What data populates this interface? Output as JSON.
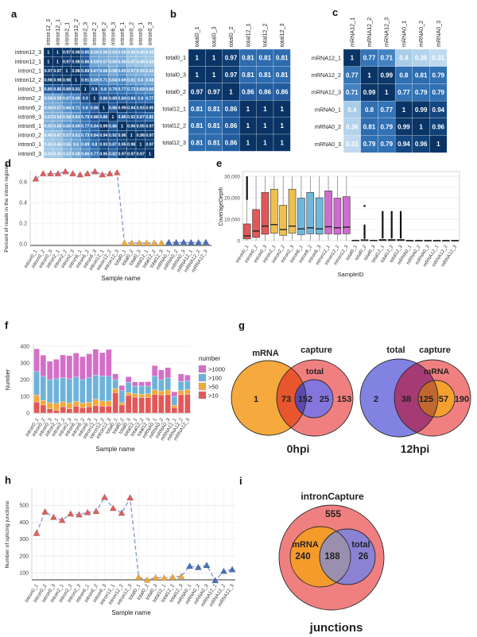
{
  "figure": {
    "background": "#ffffff"
  },
  "samples_all": [
    "intron0_1",
    "intron0_2",
    "intron0_3",
    "intron2_1",
    "intron2_2",
    "intron2_3",
    "intron6_1",
    "intron6_2",
    "intron6_3",
    "intron12_1",
    "intron12_2",
    "intron12_3",
    "total0_1",
    "total0_2",
    "total0_3",
    "total12_1",
    "total12_2",
    "total12_3",
    "mRNA0_1",
    "mRNA0_2",
    "mRNA0_3",
    "mRNA12_1",
    "mRNA12_2",
    "mRNA12_3"
  ],
  "colors": {
    "marker_groups": {
      "intron": "#D9605F",
      "total": "#EDA93D",
      "mRNA": "#4A6FB5"
    },
    "dash_line": "#8097D8",
    "box_groups": {
      "intron0": "#E15858",
      "intron2": "#EEC04F",
      "intron6": "#6FB8DC",
      "intron12": "#CF6CCF",
      "total0": "#999999",
      "total12": "#999999",
      "mRNA0": "#999999",
      "mRNA12": "#999999"
    },
    "bar_segments": {
      ">10": "#E15858",
      ">50": "#F2A93B",
      ">100": "#6DB3D9",
      ">1000": "#D46FC7"
    }
  },
  "chart_data": [
    {
      "panel": "a",
      "type": "heatmap",
      "samples": [
        "intron12_3",
        "intron12_1",
        "intron2_1",
        "intron12_2",
        "intron2_3",
        "intron2_2",
        "intron6_2",
        "intron6_3",
        "intron6_1",
        "intron0_2",
        "intron0_1",
        "intron0_3"
      ],
      "matrix": [
        [
          1,
          1,
          0.97,
          0.98,
          0.85,
          0.58,
          0.56,
          0.53,
          0.55,
          0.46,
          0.45,
          0.43
        ],
        [
          1,
          1,
          0.97,
          0.98,
          0.86,
          0.59,
          0.57,
          0.54,
          0.56,
          0.47,
          0.46,
          0.43
        ],
        [
          0.97,
          0.97,
          1,
          0.98,
          0.89,
          0.67,
          0.66,
          0.58,
          0.65,
          0.57,
          0.55,
          0.53
        ],
        [
          0.98,
          0.98,
          0.98,
          1,
          0.91,
          0.69,
          0.71,
          0.64,
          0.69,
          0.61,
          0.6,
          0.58
        ],
        [
          0.85,
          0.86,
          0.89,
          0.91,
          1,
          0.9,
          0.8,
          0.79,
          0.77,
          0.73,
          0.69,
          0.66
        ],
        [
          0.58,
          0.59,
          0.67,
          0.69,
          0.9,
          1,
          0.86,
          0.88,
          0.84,
          0.84,
          0.8,
          0.77
        ],
        [
          0.56,
          0.57,
          0.66,
          0.71,
          0.8,
          0.86,
          1,
          0.86,
          0.99,
          0.94,
          0.93,
          0.95
        ],
        [
          0.53,
          0.54,
          0.58,
          0.64,
          0.79,
          0.88,
          0.86,
          1,
          0.86,
          0.92,
          0.87,
          0.82
        ],
        [
          0.55,
          0.56,
          0.65,
          0.69,
          0.77,
          0.84,
          0.99,
          0.86,
          1,
          0.96,
          0.95,
          0.97
        ],
        [
          0.46,
          0.47,
          0.57,
          0.61,
          0.73,
          0.84,
          0.94,
          0.92,
          0.96,
          1,
          0.98,
          0.97
        ],
        [
          0.45,
          0.46,
          0.55,
          0.6,
          0.69,
          0.8,
          0.93,
          0.87,
          0.95,
          0.98,
          1,
          0.97
        ],
        [
          0.43,
          0.43,
          0.53,
          0.58,
          0.66,
          0.77,
          0.95,
          0.82,
          0.97,
          0.97,
          0.97,
          1
        ]
      ]
    },
    {
      "panel": "b",
      "type": "heatmap",
      "samples": [
        "total0_1",
        "total0_3",
        "total0_2",
        "total12_1",
        "total12_2",
        "total12_3"
      ],
      "matrix": [
        [
          1,
          1,
          0.97,
          0.81,
          0.81,
          0.81
        ],
        [
          1,
          1,
          0.97,
          0.81,
          0.81,
          0.81
        ],
        [
          0.97,
          0.97,
          1,
          0.86,
          0.86,
          0.86
        ],
        [
          0.81,
          0.81,
          0.86,
          1,
          1,
          1
        ],
        [
          0.81,
          0.81,
          0.86,
          1,
          1,
          1
        ],
        [
          0.81,
          0.81,
          0.86,
          1,
          1,
          1
        ]
      ]
    },
    {
      "panel": "c",
      "type": "heatmap",
      "samples": [
        "mRNA12_1",
        "mRNA12_2",
        "mRNA12_3",
        "mRNA0_1",
        "mRNA0_2",
        "mRNA0_3"
      ],
      "matrix": [
        [
          1,
          0.77,
          0.71,
          0.4,
          0.36,
          0.31
        ],
        [
          0.77,
          1,
          0.99,
          0.8,
          0.81,
          0.79
        ],
        [
          0.71,
          0.99,
          1,
          0.77,
          0.79,
          0.79
        ],
        [
          0.4,
          0.8,
          0.77,
          1,
          0.99,
          0.94
        ],
        [
          0.36,
          0.81,
          0.79,
          0.99,
          1,
          0.96
        ],
        [
          0.31,
          0.79,
          0.79,
          0.94,
          0.96,
          1
        ]
      ]
    },
    {
      "panel": "d",
      "type": "line",
      "ylabel": "Percent of reads in the intron regions",
      "xlabel": "Sample name",
      "yticks": [
        0.0,
        0.2,
        0.4,
        0.6
      ],
      "ytick_labels": [
        "0.0",
        "0.2",
        "0.4",
        "0.6"
      ],
      "values": [
        0.63,
        0.68,
        0.68,
        0.68,
        0.7,
        0.68,
        0.67,
        0.68,
        0.7,
        0.67,
        0.68,
        0.69,
        0.008,
        0.008,
        0.008,
        0.008,
        0.008,
        0.008,
        0.013,
        0.013,
        0.015,
        0.012,
        0.013,
        0.015
      ]
    },
    {
      "panel": "e",
      "type": "boxplot",
      "ylabel": "CoverageDepth",
      "xlabel": "SampleID",
      "yticks": [
        0,
        10000,
        20000,
        30000
      ],
      "ytick_labels": [
        "0",
        "10,000",
        "20,000",
        "30,000"
      ],
      "boxes": [
        {
          "name": "intron0_1",
          "q1": 800,
          "med": 2200,
          "q3": 7800,
          "lo": 50,
          "hi": 30000,
          "out": [
            19000,
            30000
          ]
        },
        {
          "name": "intron0_2",
          "q1": 1500,
          "med": 4500,
          "q3": 14500,
          "lo": 50,
          "hi": 30000
        },
        {
          "name": "intron0_3",
          "q1": 3000,
          "med": 6800,
          "q3": 22500,
          "lo": 50,
          "hi": 30000
        },
        {
          "name": "intron2_1",
          "q1": 3500,
          "med": 7500,
          "q3": 24000,
          "lo": 50,
          "hi": 30000
        },
        {
          "name": "intron2_2",
          "q1": 2500,
          "med": 5200,
          "q3": 16500,
          "lo": 50,
          "hi": 30000
        },
        {
          "name": "intron2_3",
          "q1": 3500,
          "med": 6800,
          "q3": 24000,
          "lo": 50,
          "hi": 30000
        },
        {
          "name": "intron6_1",
          "q1": 2800,
          "med": 5500,
          "q3": 19800,
          "lo": 50,
          "hi": 30000
        },
        {
          "name": "intron6_2",
          "q1": 3200,
          "med": 6000,
          "q3": 22500,
          "lo": 50,
          "hi": 30000
        },
        {
          "name": "intron6_3",
          "q1": 3000,
          "med": 5500,
          "q3": 20000,
          "lo": 50,
          "hi": 30000
        },
        {
          "name": "intron12_1",
          "q1": 3200,
          "med": 6500,
          "q3": 23200,
          "lo": 50,
          "hi": 30000
        },
        {
          "name": "intron12_2",
          "q1": 3000,
          "med": 6000,
          "q3": 19800,
          "lo": 50,
          "hi": 30000
        },
        {
          "name": "intron12_3",
          "q1": 3200,
          "med": 6300,
          "q3": 20500,
          "lo": 50,
          "hi": 30000
        },
        {
          "name": "total0_1",
          "q1": 0,
          "med": 100,
          "q3": 250,
          "lo": 0,
          "hi": 500
        },
        {
          "name": "total0_2",
          "q1": 0,
          "med": 200,
          "q3": 500,
          "lo": 0,
          "hi": 900,
          "out": [
            900,
            7500
          ],
          "dot": 16200
        },
        {
          "name": "total0_3",
          "q1": 0,
          "med": 100,
          "q3": 250,
          "lo": 0,
          "hi": 500
        },
        {
          "name": "total12_1",
          "q1": 0,
          "med": 250,
          "q3": 600,
          "lo": 0,
          "hi": 1100,
          "out": [
            1100,
            13800
          ]
        },
        {
          "name": "total12_2",
          "q1": 0,
          "med": 250,
          "q3": 600,
          "lo": 0,
          "hi": 1100,
          "out": [
            1100,
            13800
          ]
        },
        {
          "name": "total12_3",
          "q1": 0,
          "med": 250,
          "q3": 600,
          "lo": 0,
          "hi": 1100,
          "out": [
            1100,
            13800
          ]
        },
        {
          "name": "mRNA0_1",
          "q1": 0,
          "med": 60,
          "q3": 150,
          "lo": 0,
          "hi": 300
        },
        {
          "name": "mRNA0_2",
          "q1": 0,
          "med": 60,
          "q3": 150,
          "lo": 0,
          "hi": 300
        },
        {
          "name": "mRNA0_3",
          "q1": 0,
          "med": 60,
          "q3": 150,
          "lo": 0,
          "hi": 300
        },
        {
          "name": "mRNA12_1",
          "q1": 0,
          "med": 50,
          "q3": 130,
          "lo": 0,
          "hi": 260
        },
        {
          "name": "mRNA12_2",
          "q1": 0,
          "med": 50,
          "q3": 130,
          "lo": 0,
          "hi": 260
        },
        {
          "name": "mRNA12_3",
          "q1": 0,
          "med": 50,
          "q3": 130,
          "lo": 0,
          "hi": 260
        }
      ]
    },
    {
      "panel": "f",
      "type": "bar",
      "stacked": true,
      "ylabel": "Number",
      "xlabel": "Sample name",
      "yticks": [
        0,
        100,
        200,
        300,
        400
      ],
      "segment_order": [
        ">10",
        ">50",
        ">100",
        ">1000"
      ],
      "legend": {
        "title": "number",
        "entries": [
          ">1000",
          ">100",
          ">50",
          ">10"
        ]
      },
      "bars": [
        [
          65,
          43,
          142,
          135
        ],
        [
          48,
          27,
          145,
          127
        ],
        [
          25,
          37,
          138,
          110
        ],
        [
          15,
          43,
          147,
          117
        ],
        [
          38,
          30,
          144,
          136
        ],
        [
          25,
          35,
          145,
          139
        ],
        [
          42,
          28,
          145,
          145
        ],
        [
          32,
          28,
          140,
          138
        ],
        [
          38,
          27,
          147,
          143
        ],
        [
          45,
          37,
          146,
          155
        ],
        [
          42,
          30,
          150,
          140
        ],
        [
          42,
          30,
          148,
          161
        ],
        [
          122,
          25,
          53,
          35
        ],
        [
          48,
          14,
          73,
          30
        ],
        [
          105,
          17,
          63,
          33
        ],
        [
          95,
          20,
          45,
          27
        ],
        [
          93,
          20,
          49,
          25
        ],
        [
          93,
          22,
          47,
          26
        ],
        [
          112,
          28,
          82,
          62
        ],
        [
          108,
          25,
          67,
          58
        ],
        [
          110,
          28,
          72,
          62
        ],
        [
          32,
          15,
          53,
          27
        ],
        [
          110,
          25,
          55,
          44
        ],
        [
          112,
          28,
          53,
          35
        ]
      ]
    },
    {
      "panel": "g",
      "type": "venn",
      "diagrams": [
        {
          "caption": "0hpi",
          "sets": [
            {
              "name": "mRNA",
              "color": "#F6A93C"
            },
            {
              "name": "capture",
              "color": "#F08080"
            },
            {
              "name": "total",
              "color": "#8476DC"
            }
          ],
          "overlap_colors": [
            "#E8562D",
            "#5C4BAC"
          ],
          "regions": [
            {
              "sets": "mRNA only",
              "value": "1"
            },
            {
              "sets": "mRNA∩capture",
              "value": "73"
            },
            {
              "sets": "mRNA∩capture∩total",
              "value": "152"
            },
            {
              "sets": "capture∩total",
              "value": "25"
            },
            {
              "sets": "capture only",
              "value": "153"
            }
          ]
        },
        {
          "caption": "12hpi",
          "sets": [
            {
              "name": "total",
              "color": "#8282E2"
            },
            {
              "name": "capture",
              "color": "#F08080"
            },
            {
              "name": "mRNA",
              "color": "#F6A030"
            }
          ],
          "overlap_colors": [
            "#A53A74",
            "#C2672F"
          ],
          "regions": [
            {
              "sets": "total only",
              "value": "2"
            },
            {
              "sets": "total∩capture",
              "value": "38"
            },
            {
              "sets": "total∩capture∩mRNA",
              "value": "125"
            },
            {
              "sets": "capture∩mRNA",
              "value": "57"
            },
            {
              "sets": "capture only",
              "value": "190"
            }
          ]
        }
      ]
    },
    {
      "panel": "h",
      "type": "line",
      "ylabel": "Number of splicing junctions",
      "xlabel": "Sample name",
      "yticks": [
        100,
        200,
        300,
        400,
        500
      ],
      "ytick_labels": [
        "100",
        "200",
        "300",
        "400",
        "500"
      ],
      "values": [
        335,
        462,
        430,
        412,
        450,
        445,
        458,
        465,
        548,
        483,
        455,
        545,
        75,
        58,
        72,
        70,
        75,
        80,
        140,
        133,
        145,
        55,
        110,
        120
      ]
    },
    {
      "panel": "i",
      "type": "venn",
      "title": "intronCapture",
      "caption": "junctions",
      "sets": [
        {
          "name": "intronCapture",
          "color": "#F08080"
        },
        {
          "name": "mRNA",
          "color": "#F59B2C"
        },
        {
          "name": "total",
          "color": "#8B82D4"
        }
      ],
      "overlap_color": "#9A8FAE",
      "regions": [
        {
          "sets": "intronCapture only",
          "value": "555"
        },
        {
          "sets": "mRNA",
          "value": "240"
        },
        {
          "sets": "mRNA∩total",
          "value": "188"
        },
        {
          "sets": "total",
          "value": "26"
        }
      ]
    }
  ]
}
